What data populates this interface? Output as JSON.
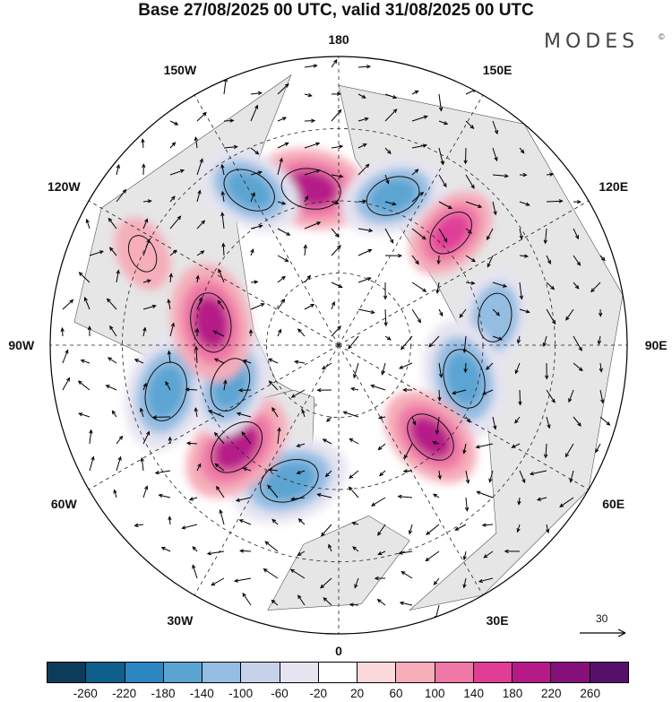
{
  "title": "Base 27/08/2025 00 UTC, valid 31/08/2025 00 UTC",
  "brand": "MODES",
  "brand_mark": "©",
  "longitude_labels": [
    "180",
    "150E",
    "120E",
    "90E",
    "60E",
    "30E",
    "0",
    "30W",
    "60W",
    "90W",
    "120W",
    "150W"
  ],
  "wind_reference_value": "30",
  "colorbar": {
    "colors": [
      "#0b3c5c",
      "#0e5f8c",
      "#2c86c2",
      "#5ba4d2",
      "#94bde2",
      "#c6d2e9",
      "#e6e4f1",
      "#ffffff",
      "#fbd8da",
      "#f5aeba",
      "#ef78a6",
      "#e03d97",
      "#b51a88",
      "#87117a",
      "#561069"
    ],
    "ticks": [
      "-260",
      "-220",
      "-180",
      "-140",
      "-100",
      "-60",
      "-20",
      "20",
      "60",
      "100",
      "140",
      "180",
      "220",
      "260"
    ]
  },
  "anomaly_centers": [
    {
      "sign": "positive",
      "level": 220,
      "sector": "170W"
    },
    {
      "sign": "negative",
      "level": -180,
      "sector": "160E"
    },
    {
      "sign": "negative",
      "level": -180,
      "sector": "150W"
    },
    {
      "sign": "positive",
      "level": 140,
      "sector": "135E"
    },
    {
      "sign": "negative",
      "level": -140,
      "sector": "100E"
    },
    {
      "sign": "negative",
      "level": -220,
      "sector": "75E"
    },
    {
      "sign": "positive",
      "level": 180,
      "sector": "45E"
    },
    {
      "sign": "negative",
      "level": -220,
      "sector": "20W"
    },
    {
      "sign": "positive",
      "level": 220,
      "sector": "45W"
    },
    {
      "sign": "negative",
      "level": -220,
      "sector": "75W"
    },
    {
      "sign": "negative",
      "level": -180,
      "sector": "70W"
    },
    {
      "sign": "positive",
      "level": 220,
      "sector": "100W"
    },
    {
      "sign": "positive",
      "level": 60,
      "sector": "115W"
    }
  ]
}
